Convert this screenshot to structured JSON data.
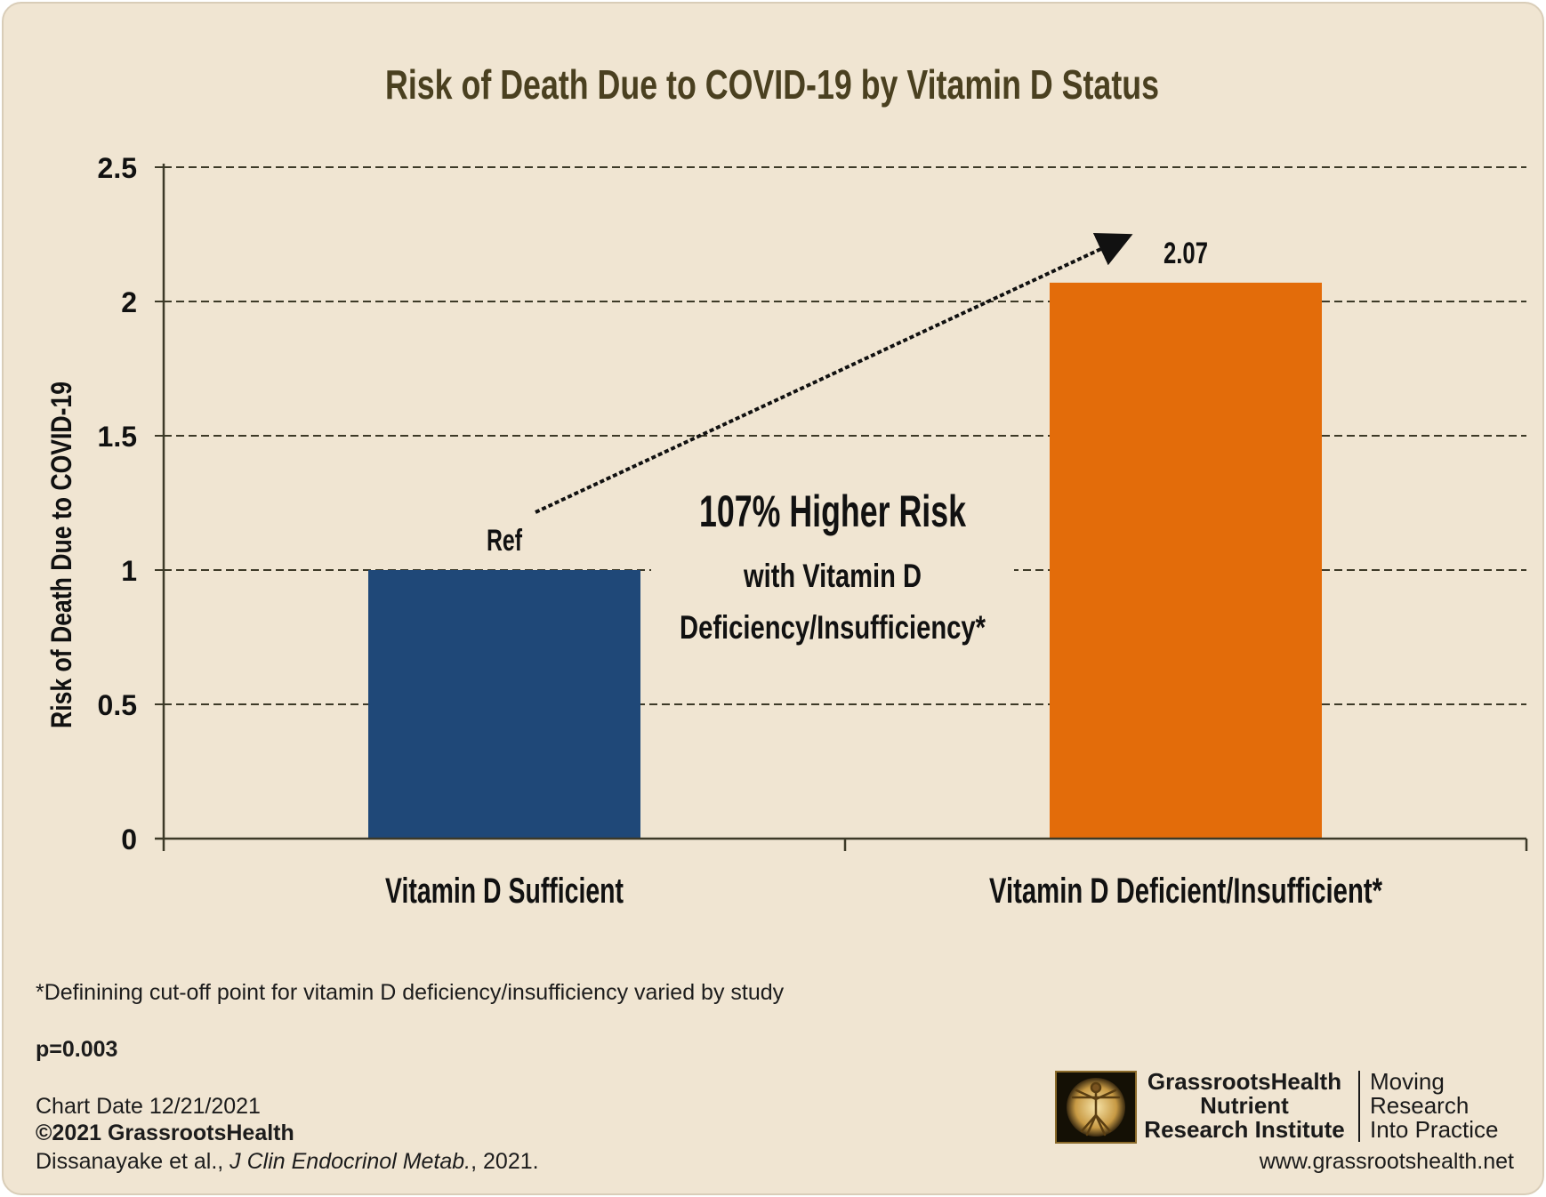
{
  "chart_data": {
    "type": "bar",
    "title": "Risk of Death Due to COVID-19 by Vitamin D Status",
    "ylabel": "Risk of Death Due to COVID-19",
    "xlabel": "",
    "categories": [
      "Vitamin D Sufficient",
      "Vitamin D Deficient/Insufficient*"
    ],
    "values": [
      1,
      2.07
    ],
    "data_labels": [
      "Ref",
      "2.07"
    ],
    "ylim": [
      0,
      2.5
    ],
    "yticks": [
      "0",
      "0.5",
      "1",
      "1.5",
      "2",
      "2.5"
    ],
    "ytick_values": [
      0,
      0.5,
      1,
      1.5,
      2,
      2.5
    ],
    "grid": true,
    "colors": [
      "#1f4878",
      "#e36c0a"
    ],
    "annotation": {
      "headline": "107% Higher Risk",
      "line2": "with Vitamin D",
      "line3": "Deficiency/Insufficiency*"
    }
  },
  "footer": {
    "note": "*Definining cut-off point for vitamin D deficiency/insufficiency varied by study",
    "pvalue": "p=0.003",
    "chart_date": "Chart Date 12/21/2021",
    "copyright": "©2021 GrassrootsHealth",
    "citation_authors": "Dissanayake et al., ",
    "citation_journal": "J Clin Endocrinol Metab.",
    "citation_year": ", 2021."
  },
  "logo": {
    "line1": "GrassrootsHealth",
    "line2": "Nutrient",
    "line3": "Research Institute",
    "tagline1": "Moving",
    "tagline2": "Research",
    "tagline3": "Into Practice",
    "website": "www.grassrootshealth.net"
  },
  "colors": {
    "background": "#f0e5d2",
    "title": "#4a4020",
    "axis": "#3d3a28"
  }
}
